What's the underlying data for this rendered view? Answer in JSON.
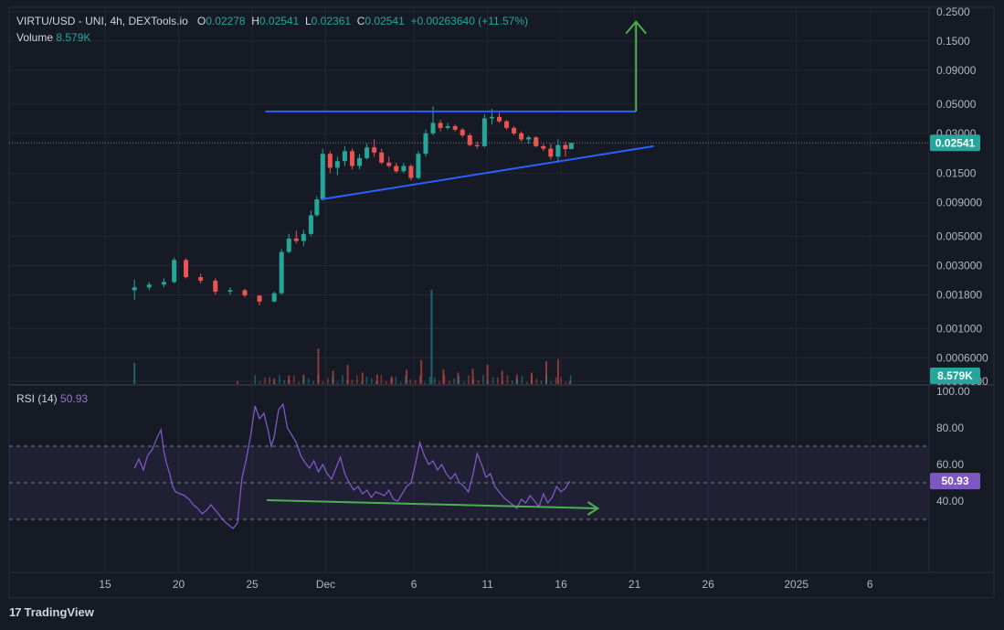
{
  "header": {
    "symbol": "VIRTU/USD - UNI, 4h, DEXTools.io",
    "open_label": "O",
    "open": "0.02278",
    "high_label": "H",
    "high": "0.02541",
    "low_label": "L",
    "low": "0.02361",
    "close_label": "C",
    "close": "0.02541",
    "change": "+0.00263640 (+11.57%)",
    "volume_label": "Volume",
    "volume": "8.579K"
  },
  "rsi_header": {
    "label": "RSI (14)",
    "value": "50.93"
  },
  "badges": {
    "price": "0.02541",
    "volume": "8.579K",
    "rsi": "50.93"
  },
  "branding": {
    "logo_mark": "17",
    "name": "TradingView"
  },
  "colors": {
    "up": "#26a69a",
    "down": "#ef5350",
    "rsi": "#7e57c2",
    "trendline": "#2962ff",
    "arrow": "#4caf50",
    "background": "#161a25"
  },
  "chart_data": [
    {
      "type": "candlestick",
      "scale": "log",
      "price_ticks": [
        "0.2500",
        "0.1500",
        "0.09000",
        "0.05000",
        "0.03000",
        "0.01500",
        "0.009000",
        "0.005000",
        "0.003000",
        "0.001800",
        "0.001000",
        "0.0006000",
        "0.0004000"
      ],
      "ylim": [
        0.00038,
        0.27
      ],
      "x_ticks": [
        "15",
        "20",
        "25",
        "Dec",
        "6",
        "11",
        "16",
        "21",
        "26",
        "2025",
        "6"
      ],
      "x_tick_days": [
        15,
        20,
        25,
        30,
        36,
        41,
        46,
        51,
        56,
        62,
        67
      ],
      "series": [
        {
          "name": "",
          "ohlc_daily": [
            {
              "day": 17.0,
              "o": 0.00195,
              "h": 0.00235,
              "l": 0.00165,
              "c": 0.00205
            },
            {
              "day": 18.0,
              "o": 0.00205,
              "h": 0.00225,
              "l": 0.00195,
              "c": 0.00215
            },
            {
              "day": 19.0,
              "o": 0.00215,
              "h": 0.0024,
              "l": 0.00205,
              "c": 0.00225
            },
            {
              "day": 19.7,
              "o": 0.00225,
              "h": 0.00345,
              "l": 0.0022,
              "c": 0.0033
            },
            {
              "day": 20.5,
              "o": 0.0033,
              "h": 0.0034,
              "l": 0.0024,
              "c": 0.00245
            },
            {
              "day": 21.5,
              "o": 0.00245,
              "h": 0.0026,
              "l": 0.0022,
              "c": 0.0023
            },
            {
              "day": 22.5,
              "o": 0.0023,
              "h": 0.0024,
              "l": 0.0018,
              "c": 0.0019
            },
            {
              "day": 23.5,
              "o": 0.0019,
              "h": 0.00205,
              "l": 0.0018,
              "c": 0.00195
            },
            {
              "day": 24.5,
              "o": 0.00195,
              "h": 0.002,
              "l": 0.00172,
              "c": 0.00178
            },
            {
              "day": 25.5,
              "o": 0.00178,
              "h": 0.00165,
              "l": 0.0015,
              "c": 0.0016
            },
            {
              "day": 26.5,
              "o": 0.0016,
              "h": 0.0019,
              "l": 0.00158,
              "c": 0.00185
            },
            {
              "day": 27.0,
              "o": 0.00185,
              "h": 0.004,
              "l": 0.0018,
              "c": 0.0038
            },
            {
              "day": 27.5,
              "o": 0.0038,
              "h": 0.0052,
              "l": 0.0037,
              "c": 0.0048
            },
            {
              "day": 28.0,
              "o": 0.0048,
              "h": 0.0055,
              "l": 0.0044,
              "c": 0.0046
            },
            {
              "day": 28.5,
              "o": 0.0046,
              "h": 0.0056,
              "l": 0.0042,
              "c": 0.0052
            },
            {
              "day": 29.0,
              "o": 0.0052,
              "h": 0.0078,
              "l": 0.005,
              "c": 0.0072
            },
            {
              "day": 29.4,
              "o": 0.0072,
              "h": 0.01,
              "l": 0.007,
              "c": 0.0095
            },
            {
              "day": 29.8,
              "o": 0.0095,
              "h": 0.023,
              "l": 0.0093,
              "c": 0.021
            },
            {
              "day": 30.3,
              "o": 0.021,
              "h": 0.022,
              "l": 0.015,
              "c": 0.0165
            },
            {
              "day": 30.8,
              "o": 0.0165,
              "h": 0.02,
              "l": 0.0145,
              "c": 0.0185
            },
            {
              "day": 31.3,
              "o": 0.0185,
              "h": 0.024,
              "l": 0.017,
              "c": 0.022
            },
            {
              "day": 31.8,
              "o": 0.022,
              "h": 0.023,
              "l": 0.016,
              "c": 0.017
            },
            {
              "day": 32.3,
              "o": 0.017,
              "h": 0.021,
              "l": 0.016,
              "c": 0.0195
            },
            {
              "day": 32.8,
              "o": 0.0195,
              "h": 0.025,
              "l": 0.019,
              "c": 0.0235
            },
            {
              "day": 33.3,
              "o": 0.0235,
              "h": 0.027,
              "l": 0.02,
              "c": 0.0215
            },
            {
              "day": 33.8,
              "o": 0.0215,
              "h": 0.023,
              "l": 0.0175,
              "c": 0.018
            },
            {
              "day": 34.3,
              "o": 0.018,
              "h": 0.02,
              "l": 0.0165,
              "c": 0.017
            },
            {
              "day": 34.8,
              "o": 0.017,
              "h": 0.018,
              "l": 0.015,
              "c": 0.0155
            },
            {
              "day": 35.3,
              "o": 0.0155,
              "h": 0.018,
              "l": 0.015,
              "c": 0.017
            },
            {
              "day": 35.8,
              "o": 0.017,
              "h": 0.0175,
              "l": 0.0132,
              "c": 0.0138
            },
            {
              "day": 36.3,
              "o": 0.0138,
              "h": 0.022,
              "l": 0.0135,
              "c": 0.021
            },
            {
              "day": 36.8,
              "o": 0.021,
              "h": 0.032,
              "l": 0.02,
              "c": 0.03
            },
            {
              "day": 37.3,
              "o": 0.03,
              "h": 0.048,
              "l": 0.029,
              "c": 0.036
            },
            {
              "day": 37.8,
              "o": 0.036,
              "h": 0.038,
              "l": 0.031,
              "c": 0.033
            },
            {
              "day": 38.3,
              "o": 0.033,
              "h": 0.036,
              "l": 0.032,
              "c": 0.034
            },
            {
              "day": 38.8,
              "o": 0.034,
              "h": 0.035,
              "l": 0.031,
              "c": 0.032
            },
            {
              "day": 39.3,
              "o": 0.032,
              "h": 0.033,
              "l": 0.028,
              "c": 0.029
            },
            {
              "day": 39.8,
              "o": 0.029,
              "h": 0.03,
              "l": 0.024,
              "c": 0.0245
            },
            {
              "day": 40.3,
              "o": 0.0245,
              "h": 0.026,
              "l": 0.023,
              "c": 0.024
            },
            {
              "day": 40.8,
              "o": 0.024,
              "h": 0.042,
              "l": 0.0235,
              "c": 0.039
            },
            {
              "day": 41.3,
              "o": 0.039,
              "h": 0.046,
              "l": 0.035,
              "c": 0.04
            },
            {
              "day": 41.8,
              "o": 0.04,
              "h": 0.043,
              "l": 0.036,
              "c": 0.037
            },
            {
              "day": 42.3,
              "o": 0.037,
              "h": 0.038,
              "l": 0.032,
              "c": 0.033
            },
            {
              "day": 42.8,
              "o": 0.033,
              "h": 0.034,
              "l": 0.029,
              "c": 0.03
            },
            {
              "day": 43.3,
              "o": 0.03,
              "h": 0.031,
              "l": 0.026,
              "c": 0.027
            },
            {
              "day": 43.8,
              "o": 0.027,
              "h": 0.029,
              "l": 0.025,
              "c": 0.028
            },
            {
              "day": 44.3,
              "o": 0.028,
              "h": 0.0285,
              "l": 0.0235,
              "c": 0.024
            },
            {
              "day": 44.8,
              "o": 0.024,
              "h": 0.025,
              "l": 0.022,
              "c": 0.023
            },
            {
              "day": 45.3,
              "o": 0.023,
              "h": 0.025,
              "l": 0.019,
              "c": 0.02
            },
            {
              "day": 45.8,
              "o": 0.02,
              "h": 0.027,
              "l": 0.018,
              "c": 0.0245
            },
            {
              "day": 46.3,
              "o": 0.0245,
              "h": 0.026,
              "l": 0.02,
              "c": 0.0228
            },
            {
              "day": 46.7,
              "o": 0.02278,
              "h": 0.02541,
              "l": 0.02361,
              "c": 0.02541
            }
          ],
          "volume_daily": [
            {
              "day": 17.0,
              "v": 2.2
            },
            {
              "day": 24.0,
              "v": 0.3
            },
            {
              "day": 26.5,
              "v": 0.6
            },
            {
              "day": 27.5,
              "v": 0.9
            },
            {
              "day": 28.5,
              "v": 1.0
            },
            {
              "day": 29.5,
              "v": 3.7
            },
            {
              "day": 30.5,
              "v": 1.4
            },
            {
              "day": 31.5,
              "v": 2.0
            },
            {
              "day": 32.5,
              "v": 1.2
            },
            {
              "day": 33.5,
              "v": 1.0
            },
            {
              "day": 34.5,
              "v": 0.8
            },
            {
              "day": 35.5,
              "v": 1.5
            },
            {
              "day": 36.5,
              "v": 2.5
            },
            {
              "day": 37.2,
              "v": 9.8
            },
            {
              "day": 38.0,
              "v": 1.5
            },
            {
              "day": 39.0,
              "v": 1.2
            },
            {
              "day": 40.0,
              "v": 1.6
            },
            {
              "day": 41.0,
              "v": 2.0
            },
            {
              "day": 42.0,
              "v": 1.4
            },
            {
              "day": 43.0,
              "v": 1.0
            },
            {
              "day": 44.0,
              "v": 1.2
            },
            {
              "day": 45.0,
              "v": 2.4
            },
            {
              "day": 45.8,
              "v": 2.6
            },
            {
              "day": 46.6,
              "v": 0.3
            }
          ]
        }
      ],
      "annotations": {
        "resistance_line": {
          "from": {
            "day": 25.9,
            "price": 0.044
          },
          "to": {
            "day": 51.1,
            "price": 0.044
          }
        },
        "support_line": {
          "from": {
            "day": 29.7,
            "price": 0.0095
          },
          "to": {
            "day": 52.3,
            "price": 0.024
          }
        },
        "breakout_arrow": {
          "day": 51.1,
          "from": 0.044,
          "to": 0.21
        }
      }
    },
    {
      "type": "line",
      "indicator": "RSI (14)",
      "y_ticks": [
        "100.00",
        "80.00",
        "60.00",
        "40.00"
      ],
      "ylim": [
        0,
        100
      ],
      "bands": [
        30,
        50,
        70
      ],
      "series": [
        {
          "name": "",
          "x": [
            17.0,
            17.3,
            17.6,
            17.9,
            18.2,
            18.5,
            18.8,
            19.0,
            19.2,
            19.4,
            19.6,
            19.8,
            20.1,
            20.4,
            20.7,
            21.0,
            21.3,
            21.6,
            21.9,
            22.2,
            22.5,
            22.8,
            23.1,
            23.4,
            23.7,
            24.0,
            24.3,
            24.6,
            24.9,
            25.2,
            25.5,
            25.8,
            26.1,
            26.3,
            26.5,
            26.8,
            27.1,
            27.4,
            27.7,
            28.0,
            28.3,
            28.6,
            28.9,
            29.2,
            29.5,
            29.8,
            30.1,
            30.4,
            30.7,
            31.0,
            31.3,
            31.6,
            31.9,
            32.2,
            32.5,
            32.8,
            33.1,
            33.4,
            33.7,
            34.0,
            34.3,
            34.6,
            34.9,
            35.2,
            35.5,
            35.8,
            36.1,
            36.4,
            36.7,
            37.0,
            37.3,
            37.6,
            37.9,
            38.2,
            38.5,
            38.8,
            39.1,
            39.4,
            39.7,
            40.0,
            40.3,
            40.6,
            40.9,
            41.2,
            41.5,
            41.8,
            42.1,
            42.4,
            42.7,
            43.0,
            43.3,
            43.6,
            43.9,
            44.2,
            44.5,
            44.8,
            45.1,
            45.4,
            45.7,
            46.0,
            46.3,
            46.6
          ],
          "values": [
            58,
            63,
            57,
            65,
            68,
            74,
            79,
            67,
            60,
            55,
            48,
            45,
            44,
            43,
            41,
            38,
            36,
            33,
            35,
            38,
            35,
            32,
            29,
            27,
            25,
            28,
            52,
            63,
            76,
            92,
            85,
            88,
            78,
            70,
            75,
            90,
            93,
            80,
            76,
            72,
            65,
            61,
            58,
            62,
            56,
            60,
            55,
            52,
            58,
            64,
            55,
            50,
            46,
            48,
            44,
            46,
            42,
            45,
            44,
            43,
            46,
            41,
            40,
            44,
            48,
            50,
            60,
            72,
            65,
            60,
            62,
            57,
            60,
            55,
            52,
            55,
            50,
            48,
            45,
            54,
            66,
            60,
            53,
            55,
            48,
            45,
            42,
            40,
            38,
            36,
            41,
            39,
            43,
            40,
            37,
            44,
            39,
            42,
            48,
            45,
            47,
            50.93
          ]
        }
      ],
      "annotations": {
        "divergence_arrow": {
          "from": {
            "day": 26.0,
            "value": 40.5
          },
          "to": {
            "day": 48.5,
            "value": 36.0
          }
        }
      }
    }
  ]
}
